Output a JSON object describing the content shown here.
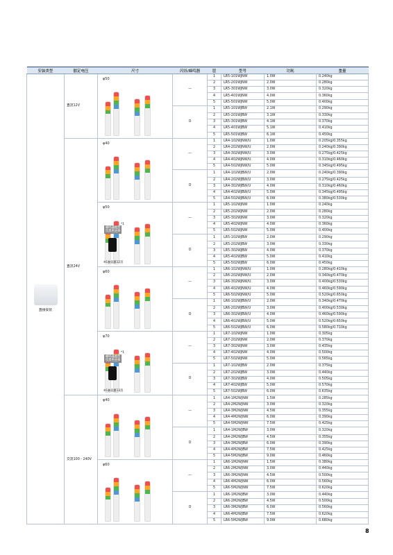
{
  "page": {
    "number": "8"
  },
  "table": {
    "headers": [
      "安装类型",
      "额定电压",
      "尺寸",
      "闪烁/蜂鸣器",
      "层",
      "型号",
      "功耗",
      "重量"
    ],
    "mount": "直接安装",
    "voltages": [
      {
        "label": "直流12V",
        "sizes": [
          {
            "label": "φ50",
            "groups": [
              {
                "blink": "—",
                "rows": [
                  [
                    "1",
                    "LR5-101WJNW",
                    "1.0W",
                    "0.240kg"
                  ],
                  [
                    "2",
                    "LR5-201WJNW",
                    "2.0W",
                    "0.280kg"
                  ],
                  [
                    "3",
                    "LR5-301WJNW",
                    "3.0W",
                    "0.320kg"
                  ],
                  [
                    "4",
                    "LR5-401WJNW",
                    "4.0W",
                    "0.360kg"
                  ],
                  [
                    "5",
                    "LR5-501WJNW",
                    "5.0W",
                    "0.400kg"
                  ]
                ]
              },
              {
                "blink": "O",
                "rows": [
                  [
                    "1",
                    "LR5-101WJBW",
                    "2.1W",
                    "0.290kg"
                  ],
                  [
                    "2",
                    "LR5-201WJBW",
                    "3.1W",
                    "0.330kg"
                  ],
                  [
                    "3",
                    "LR5-301WJBW",
                    "4.1W",
                    "0.370kg"
                  ],
                  [
                    "4",
                    "LR5-401WJBW",
                    "5.1W",
                    "0.410kg"
                  ],
                  [
                    "5",
                    "LR5-501WJBW",
                    "6.1W",
                    "0.450kg"
                  ]
                ]
              }
            ]
          }
        ]
      },
      {
        "label": "直流24V",
        "sizes": [
          {
            "label": "φ40",
            "groups": [
              {
                "blink": "—",
                "rows": [
                  [
                    "1",
                    "LR4-102WJNW/U",
                    "1.0W",
                    "0.205kg/0.355kg"
                  ],
                  [
                    "2",
                    "LR4-202WJNW/U",
                    "2.0W",
                    "0.240kg/0.390kg"
                  ],
                  [
                    "3",
                    "LR4-302WJNW/U",
                    "3.0W",
                    "0.275kg/0.425kg"
                  ],
                  [
                    "4",
                    "LR4-402WJNW/U",
                    "4.0W",
                    "0.310kg/0.460kg"
                  ],
                  [
                    "5",
                    "LR4-502WJNW/U",
                    "5.0W",
                    "0.345kg/0.495kg"
                  ]
                ]
              },
              {
                "blink": "O",
                "rows": [
                  [
                    "1",
                    "LR4-102WJBW/U",
                    "2.0W",
                    "0.240kg/0.390kg"
                  ],
                  [
                    "2",
                    "LR4-202WJBW/U",
                    "3.0W",
                    "0.275kg/0.425kg"
                  ],
                  [
                    "3",
                    "LR4-302WJBW/U",
                    "4.0W",
                    "0.310kg/0.460kg"
                  ],
                  [
                    "4",
                    "LR4-402WJBW/U",
                    "5.0W",
                    "0.345kg/0.495kg"
                  ],
                  [
                    "5",
                    "LR4-502WJBW/U",
                    "6.0W",
                    "0.380kg/0.530kg"
                  ]
                ]
              }
            ]
          },
          {
            "label": "φ50",
            "note_mark": "*1",
            "badge": [
              "蜂鸣器类型",
              "仅黑色主体"
            ],
            "footnote": "※1参见第12页",
            "groups": [
              {
                "blink": "—",
                "rows": [
                  [
                    "1",
                    "LR5-102WJNW",
                    "1.0W",
                    "0.240kg"
                  ],
                  [
                    "2",
                    "LR5-202WJNW",
                    "2.0W",
                    "0.280kg"
                  ],
                  [
                    "3",
                    "LR5-302WJNW",
                    "3.0W",
                    "0.320kg"
                  ],
                  [
                    "4",
                    "LR5-402WJNW",
                    "4.0W",
                    "0.360kg"
                  ],
                  [
                    "5",
                    "LR5-502WJNW",
                    "5.0W",
                    "0.400kg"
                  ]
                ]
              },
              {
                "blink": "O",
                "rows": [
                  [
                    "1",
                    "LR5-102WJBW",
                    "2.0W",
                    "0.290kg"
                  ],
                  [
                    "2",
                    "LR5-202WJBW",
                    "3.0W",
                    "0.330kg"
                  ],
                  [
                    "3",
                    "LR5-302WJBW",
                    "4.0W",
                    "0.370kg"
                  ],
                  [
                    "4",
                    "LR5-402WJBW",
                    "5.0W",
                    "0.410kg"
                  ],
                  [
                    "5",
                    "LR5-502WJBW",
                    "6.0W",
                    "0.450kg"
                  ]
                ]
              }
            ]
          },
          {
            "label": "φ60",
            "groups": [
              {
                "blink": "—",
                "rows": [
                  [
                    "1",
                    "LR6-102WJNW/U",
                    "1.0W",
                    "0.280kg/0.410kg"
                  ],
                  [
                    "2",
                    "LR6-202WJNW/U",
                    "2.0W",
                    "0.340kg/0.470kg"
                  ],
                  [
                    "3",
                    "LR6-302WJNW/U",
                    "3.0W",
                    "0.400kg/0.530kg"
                  ],
                  [
                    "4",
                    "LR6-402WJNW/U",
                    "4.0W",
                    "0.460kg/0.590kg"
                  ],
                  [
                    "5",
                    "LR6-502WJNW/U",
                    "5.0W",
                    "0.520kg/0.650kg"
                  ]
                ]
              },
              {
                "blink": "O",
                "rows": [
                  [
                    "1",
                    "LR6-102WJBW/U",
                    "2.0W",
                    "0.340kg/0.470kg"
                  ],
                  [
                    "2",
                    "LR6-202WJBW/U",
                    "3.0W",
                    "0.400kg/0.530kg"
                  ],
                  [
                    "3",
                    "LR6-302WJBW/U",
                    "4.0W",
                    "0.460kg/0.590kg"
                  ],
                  [
                    "4",
                    "LR6-402WJBW/U",
                    "5.0W",
                    "0.520kg/0.650kg"
                  ],
                  [
                    "5",
                    "LR6-502WJBW/U",
                    "6.0W",
                    "0.580kg/0.710kg"
                  ]
                ]
              }
            ]
          },
          {
            "label": "φ70",
            "note_mark": "*1",
            "badge": [
              "蜂鸣器类型",
              "仅黑色主体"
            ],
            "footnote": "※1参见第13页",
            "groups": [
              {
                "blink": "—",
                "rows": [
                  [
                    "1",
                    "LR7-102WJNW",
                    "1.0W",
                    "0.305kg"
                  ],
                  [
                    "2",
                    "LR7-202WJNW",
                    "2.0W",
                    "0.370kg"
                  ],
                  [
                    "3",
                    "LR7-302WJNW",
                    "3.0W",
                    "0.435kg"
                  ],
                  [
                    "4",
                    "LR7-402WJNW",
                    "4.0W",
                    "0.500kg"
                  ],
                  [
                    "5",
                    "LR7-502WJNW",
                    "5.0W",
                    "0.565kg"
                  ]
                ]
              },
              {
                "blink": "O",
                "rows": [
                  [
                    "1",
                    "LR7-102WJBW",
                    "2.0W",
                    "0.375kg"
                  ],
                  [
                    "2",
                    "LR7-202WJBW",
                    "3.0W",
                    "0.440kg"
                  ],
                  [
                    "3",
                    "LR7-302WJBW",
                    "4.0W",
                    "0.505kg"
                  ],
                  [
                    "4",
                    "LR7-402WJBW",
                    "5.0W",
                    "0.570kg"
                  ],
                  [
                    "5",
                    "LR7-502WJBW",
                    "6.0W",
                    "0.635kg"
                  ]
                ]
              }
            ]
          }
        ]
      },
      {
        "label": "交流100 - 240V",
        "sizes": [
          {
            "label": "φ40",
            "groups": [
              {
                "blink": "—",
                "rows": [
                  [
                    "1",
                    "LR4-1M2WJNW",
                    "1.5W",
                    "0.285kg"
                  ],
                  [
                    "2",
                    "LR4-2M2WJNW",
                    "3.0W",
                    "0.320kg"
                  ],
                  [
                    "3",
                    "LR4-3M2WJNW",
                    "4.5W",
                    "0.355kg"
                  ],
                  [
                    "4",
                    "LR4-4M2WJNW",
                    "6.0W",
                    "0.390kg"
                  ],
                  [
                    "5",
                    "LR4-5M2WJNW",
                    "7.5W",
                    "0.425kg"
                  ]
                ]
              },
              {
                "blink": "O",
                "rows": [
                  [
                    "1",
                    "LR4-1M2WJBW",
                    "3.0W",
                    "0.320kg"
                  ],
                  [
                    "2",
                    "LR4-2M2WJBW",
                    "4.5W",
                    "0.355kg"
                  ],
                  [
                    "3",
                    "LR4-3M2WJBW",
                    "6.0W",
                    "0.390kg"
                  ],
                  [
                    "4",
                    "LR4-4M2WJBW",
                    "7.5W",
                    "0.425kg"
                  ],
                  [
                    "5",
                    "LR4-5M2WJBW",
                    "9.0W",
                    "0.460kg"
                  ]
                ]
              }
            ]
          },
          {
            "label": "φ60",
            "groups": [
              {
                "blink": "—",
                "rows": [
                  [
                    "1",
                    "LR6-1M2WJNW",
                    "1.5W",
                    "0.380kg"
                  ],
                  [
                    "2",
                    "LR6-2M2WJNW",
                    "3.0W",
                    "0.440kg"
                  ],
                  [
                    "3",
                    "LR6-3M2WJNW",
                    "4.5W",
                    "0.500kg"
                  ],
                  [
                    "4",
                    "LR6-4M2WJNW",
                    "6.0W",
                    "0.560kg"
                  ],
                  [
                    "5",
                    "LR6-5M2WJNW",
                    "7.5W",
                    "0.620kg"
                  ]
                ]
              },
              {
                "blink": "O",
                "rows": [
                  [
                    "1",
                    "LR6-1M2WJBW",
                    "3.0W",
                    "0.440kg"
                  ],
                  [
                    "2",
                    "LR6-2M2WJBW",
                    "4.5W",
                    "0.500kg"
                  ],
                  [
                    "3",
                    "LR6-3M2WJBW",
                    "6.0W",
                    "0.560kg"
                  ],
                  [
                    "4",
                    "LR6-4M2WJBW",
                    "7.5W",
                    "0.620kg"
                  ],
                  [
                    "5",
                    "LR6-5M2WJBW",
                    "9.0W",
                    "0.680kg"
                  ]
                ]
              }
            ]
          }
        ]
      }
    ]
  }
}
